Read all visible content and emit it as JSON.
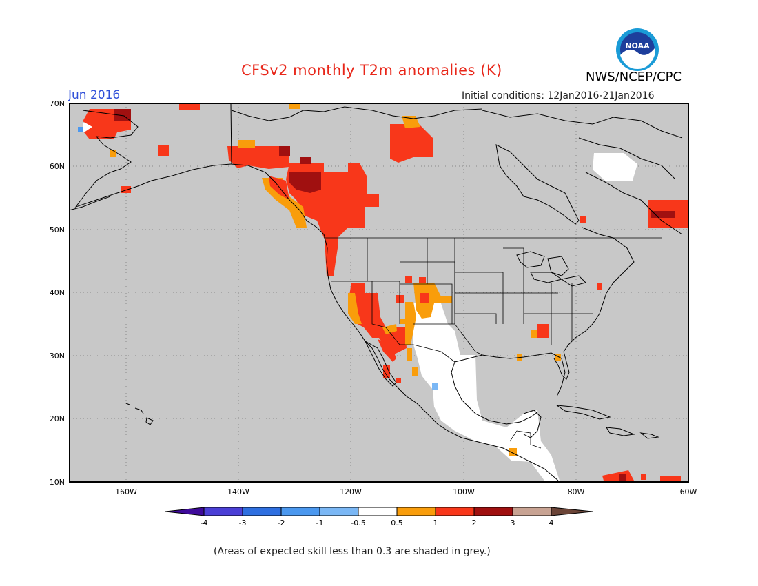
{
  "header": {
    "title": "CFSv2 monthly T2m anomalies (K)",
    "month": "Jun 2016",
    "initial_conditions": "Initial conditions: 12Jan2016-21Jan2016",
    "agency": "NWS/NCEP/CPC",
    "logo_text": "NOAA"
  },
  "map": {
    "region": "North America",
    "lat_range": [
      10,
      70
    ],
    "lon_range": [
      -170,
      -60
    ],
    "lat_ticks": [
      "70N",
      "60N",
      "50N",
      "40N",
      "30N",
      "20N",
      "10N"
    ],
    "lon_ticks": [
      "160W",
      "140W",
      "120W",
      "100W",
      "80W",
      "60W"
    ],
    "background_color": "#c8c8c8",
    "grid": "dotted"
  },
  "colorbar": {
    "labels": [
      "-4",
      "-3",
      "-2",
      "-1",
      "-0.5",
      "0.5",
      "1",
      "2",
      "3",
      "4"
    ],
    "colors": [
      "#3e0a9a",
      "#4b3fd6",
      "#2e6fe0",
      "#4b98ef",
      "#7ab7f5",
      "#ffffff",
      "#f99d0b",
      "#f8371a",
      "#a01010",
      "#c8a393",
      "#6b4437"
    ]
  },
  "footnote": "(Areas of expected skill less than 0.3 are shaded in grey.)"
}
